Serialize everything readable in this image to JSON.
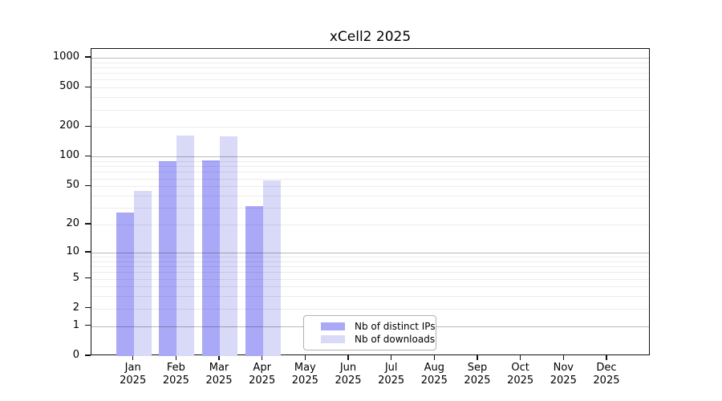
{
  "title": "xCell2 2025",
  "chart_data": {
    "type": "bar",
    "title": "xCell2 2025",
    "xlabel": "",
    "ylabel": "",
    "categories": [
      "Jan",
      "Feb",
      "Mar",
      "Apr",
      "May",
      "Jun",
      "Jul",
      "Aug",
      "Sep",
      "Oct",
      "Nov",
      "Dec"
    ],
    "category_year": "2025",
    "series": [
      {
        "name": "Nb of distinct IPs",
        "color": "#a9a9f8",
        "values": [
          27,
          90,
          91,
          31,
          null,
          null,
          null,
          null,
          null,
          null,
          null,
          null
        ]
      },
      {
        "name": "Nb of downloads",
        "color": "#d9d9f8",
        "values": [
          45,
          165,
          161,
          57,
          null,
          null,
          null,
          null,
          null,
          null,
          null,
          null
        ]
      }
    ],
    "y_axis": {
      "scale": "log10(1+x)",
      "tick_values": [
        0,
        1,
        2,
        5,
        10,
        20,
        50,
        100,
        200,
        500,
        1000
      ],
      "tick_labels": [
        "0",
        "1",
        "2",
        "5",
        "10",
        "20",
        "50",
        "100",
        "200",
        "500",
        "1000"
      ],
      "major_gridlines": [
        1,
        10,
        100,
        1000
      ],
      "minor_gridlines": [
        2,
        3,
        4,
        5,
        6,
        7,
        8,
        9,
        20,
        30,
        40,
        50,
        60,
        70,
        80,
        90,
        200,
        300,
        400,
        500,
        600,
        700,
        800,
        900
      ],
      "ymax": 1250
    },
    "legend": {
      "position": "inside lower-center",
      "entries": [
        "Nb of distinct IPs",
        "Nb of downloads"
      ]
    },
    "grid": "on",
    "colors": {
      "axis": "#111111",
      "major_grid": "#bbbbbb",
      "minor_grid": "#ececec",
      "background": "#ffffff"
    }
  }
}
